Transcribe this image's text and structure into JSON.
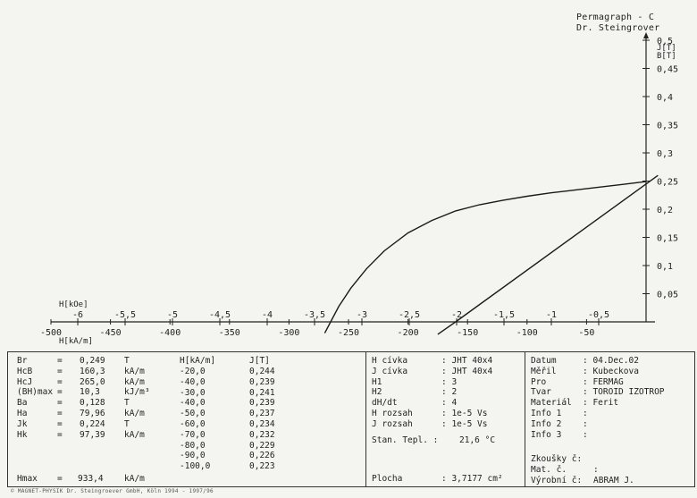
{
  "header": {
    "title": "Permagraph - C",
    "author": "Dr. Steingrover"
  },
  "chart_data": {
    "type": "line",
    "y_axis_label_lines": [
      "J[T]",
      "B[T]"
    ],
    "y_ticks": [
      0.05,
      0.1,
      0.15,
      0.2,
      0.25,
      0.3,
      0.35,
      0.4,
      0.45,
      0.5
    ],
    "y_tick_labels": [
      "0,05",
      "0,1",
      "0,15",
      "0,2",
      "0,25",
      "0,3",
      "0,35",
      "0,4",
      "0,45",
      "0,5"
    ],
    "ylim": [
      0,
      0.5
    ],
    "xlim": [
      -500,
      0
    ],
    "x_axis_label_koe": "H[kOe]",
    "x_axis_label_kam": "H[kA/m]",
    "x_ticks_koe": [
      -6,
      -5.5,
      -5,
      -4.5,
      -4,
      -3.5,
      -3,
      -2.5,
      -2,
      -1.5,
      -1,
      -0.5
    ],
    "x_tick_labels_koe": [
      "-6",
      "-5,5",
      "-5",
      "-4,5",
      "-4",
      "-3,5",
      "-3",
      "-2,5",
      "-2",
      "-1,5",
      "-1",
      "-0,5"
    ],
    "x_ticks_kam": [
      -500,
      -450,
      -400,
      -350,
      -300,
      -250,
      -200,
      -150,
      -100,
      -50
    ],
    "x_tick_labels_kam": [
      "-500",
      "-450",
      "-400",
      "-350",
      "-300",
      "-250",
      "-200",
      "-150",
      "-100",
      "-50"
    ],
    "series": [
      {
        "x": [
          0,
          -20,
          -40,
          -60,
          -80,
          -100,
          -120,
          -140,
          -160,
          -180,
          -200,
          -220,
          -235,
          -248,
          -258,
          -265,
          -270
        ],
        "y": [
          0.249,
          0.244,
          0.239,
          0.234,
          0.229,
          0.223,
          0.216,
          0.208,
          0.197,
          0.18,
          0.158,
          0.126,
          0.094,
          0.06,
          0.028,
          0.0,
          -0.02
        ]
      },
      {
        "x": [
          10,
          -160,
          -175
        ],
        "y": [
          0.26,
          0.0,
          -0.022
        ]
      }
    ],
    "grid": false
  },
  "results_left": [
    {
      "name": "Br",
      "eq": "=",
      "value": "0,249",
      "unit": "T"
    },
    {
      "name": "HcB",
      "eq": "=",
      "value": "160,3",
      "unit": "kA/m"
    },
    {
      "name": "HcJ",
      "eq": "=",
      "value": "265,0",
      "unit": "kA/m"
    },
    {
      "name": "(BH)max",
      "eq": "=",
      "value": "10,3",
      "unit": "kJ/m³"
    },
    {
      "name": "Ba",
      "eq": "=",
      "value": "0,128",
      "unit": "T"
    },
    {
      "name": "Ha",
      "eq": "=",
      "value": "79,96",
      "unit": "kA/m"
    },
    {
      "name": "Jk",
      "eq": "=",
      "value": "0,224",
      "unit": "T"
    },
    {
      "name": "Hk",
      "eq": "=",
      "value": "97,39",
      "unit": "kA/m"
    }
  ],
  "hmax": {
    "name": "Hmax",
    "eq": "=",
    "value": "933,4",
    "unit": "kA/m"
  },
  "hj_table": {
    "h_header": "H[kA/m]",
    "j_header": "J[T]",
    "rows": [
      [
        "-20,0",
        "0,244"
      ],
      [
        "-40,0",
        "0,239"
      ],
      [
        "-30,0",
        "0,241"
      ],
      [
        "-40,0",
        "0,239"
      ],
      [
        "-50,0",
        "0,237"
      ],
      [
        "-60,0",
        "0,234"
      ],
      [
        "-70,0",
        "0,232"
      ],
      [
        "-80,0",
        "0,229"
      ],
      [
        "-90,0",
        "0,226"
      ],
      [
        "-100,0",
        "0,223"
      ]
    ]
  },
  "settings": [
    {
      "label": "H cívka",
      "value": ": JHT 40x4"
    },
    {
      "label": "J cívka",
      "value": ": JHT 40x4"
    },
    {
      "label": "H1",
      "value": ": 3"
    },
    {
      "label": "H2",
      "value": ": 2"
    },
    {
      "label": "dH/dt",
      "value": ": 4"
    },
    {
      "label": "H rozsah",
      "value": ": 1e-5 Vs"
    },
    {
      "label": "J rozsah",
      "value": ": 1e-5 Vs"
    }
  ],
  "temperature": {
    "label": "Stan. Tepl. :",
    "value": "21,6 °C"
  },
  "area": {
    "label": "Plocha",
    "value": ": 3,7177 cm²"
  },
  "info": [
    {
      "label": "Datum",
      "value": ": 04.Dec.02"
    },
    {
      "label": "Měřil",
      "value": ": Kubeckova"
    },
    {
      "label": "Pro",
      "value": ": FERMAG"
    },
    {
      "label": "Tvar",
      "value": ": TOROID IZOTROP"
    },
    {
      "label": "Materiál",
      "value": ": Ferit"
    },
    {
      "label": "Info 1",
      "value": ":"
    },
    {
      "label": "Info 2",
      "value": ":"
    },
    {
      "label": "Info 3",
      "value": ":"
    }
  ],
  "bottom_info": [
    {
      "label": "Zkoušky č:",
      "value": ""
    },
    {
      "label": "Mat. č.",
      "value": ":"
    },
    {
      "label": "Výrobní č:",
      "value": "ABRAM J."
    }
  ],
  "footer": "© MAGNET-PHYSIK Dr. Steingroever GmbH, Köln 1994 - 1997/96"
}
